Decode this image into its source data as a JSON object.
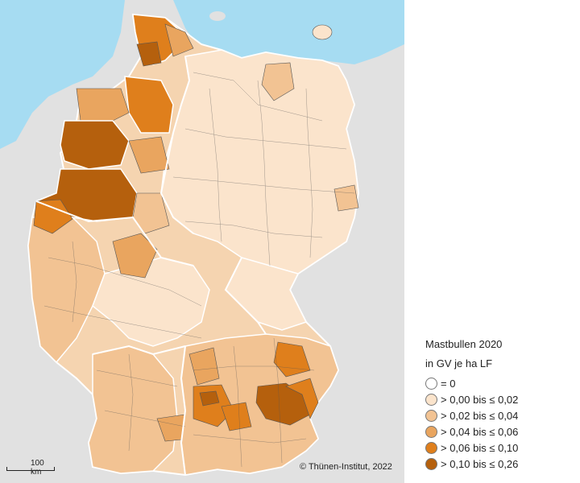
{
  "legend": {
    "title_line1": "Mastbullen 2020",
    "title_line2": "in GV je ha LF",
    "classes": [
      {
        "label": "= 0",
        "color": "#ffffff"
      },
      {
        "label": "> 0,00 bis ≤ 0,02",
        "color": "#fbe4cc"
      },
      {
        "label": "> 0,02 bis ≤ 0,04",
        "color": "#f2c393"
      },
      {
        "label": "> 0,04 bis ≤ 0,06",
        "color": "#e9a55f"
      },
      {
        "label": "> 0,06 bis ≤ 0,10",
        "color": "#df7f1c"
      },
      {
        "label": "> 0,10 bis ≤ 0,26",
        "color": "#b5600d"
      }
    ]
  },
  "scale_bar": {
    "label": "100 km"
  },
  "copyright": "© Thünen-Institut, 2022",
  "colors": {
    "sea": "#a6dcf2",
    "neighbor_land": "#e1e1e1",
    "state_border": "#ffffff",
    "district_border": "#555555"
  }
}
